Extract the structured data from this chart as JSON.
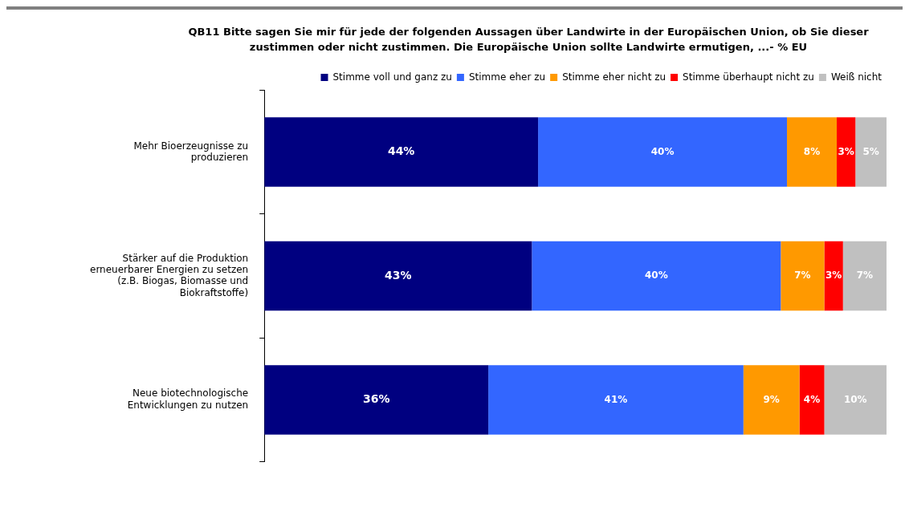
{
  "chart_data": {
    "type": "bar",
    "orientation": "horizontal",
    "stacked": true,
    "title": "QB11 Bitte sagen Sie mir für jede der folgenden Aussagen über Landwirte in der Europäischen Union, ob Sie dieser zustimmen oder nicht zustimmen. Die Europäische Union sollte Landwirte ermutigen, ...- % EU",
    "categories": [
      "Mehr Bioerzeugnisse zu produzieren",
      "Stärker auf die Produktion erneuerbarer Energien zu setzen (z.B. Biogas, Biomasse und Biokraftstoffe)",
      "Neue biotechnologische Entwicklungen zu nutzen"
    ],
    "series": [
      {
        "name": "Stimme voll und ganz zu",
        "color": "#000080",
        "values": [
          44,
          43,
          36
        ],
        "value_labels": [
          "44%",
          "43%",
          "36%"
        ]
      },
      {
        "name": "Stimme eher zu",
        "color": "#3366ff",
        "values": [
          40,
          40,
          41
        ],
        "value_labels": [
          "40%",
          "40%",
          "41%"
        ]
      },
      {
        "name": "Stimme eher nicht zu",
        "color": "#ff9900",
        "values": [
          8,
          7,
          9
        ],
        "value_labels": [
          "8%",
          "7%",
          "9%"
        ]
      },
      {
        "name": "Stimme überhaupt nicht zu",
        "color": "#ff0000",
        "values": [
          3,
          3,
          4
        ],
        "value_labels": [
          "3%",
          "3%",
          "4%"
        ]
      },
      {
        "name": "Weiß nicht",
        "color": "#c0c0c0",
        "values": [
          5,
          7,
          10
        ],
        "value_labels": [
          "5%",
          "7%",
          "10%"
        ]
      }
    ],
    "tick_labels": "y",
    "legend": "top",
    "grid": false
  }
}
